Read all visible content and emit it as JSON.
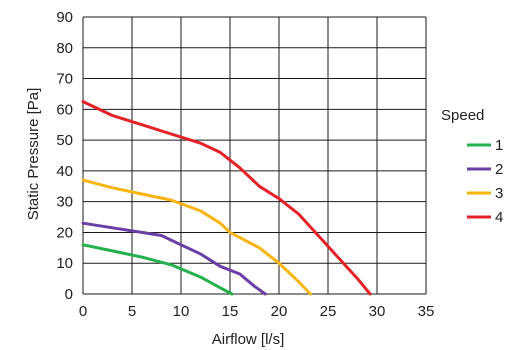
{
  "chart_data": {
    "type": "line",
    "title": "",
    "xlabel": "Airflow [l/s]",
    "ylabel": "Static Pressure [Pa]",
    "xlim": [
      0,
      35
    ],
    "ylim": [
      0,
      90
    ],
    "x_ticks": [
      "0",
      "5",
      "10",
      "15",
      "20",
      "25",
      "30",
      "35"
    ],
    "y_ticks": [
      "0",
      "10",
      "20",
      "30",
      "40",
      "50",
      "60",
      "70",
      "80",
      "90"
    ],
    "grid": true,
    "legend_title": "Speed",
    "legend_position": "right",
    "series": [
      {
        "name": "1",
        "color": "#22b14c",
        "points": [
          [
            0,
            16
          ],
          [
            3,
            14
          ],
          [
            6,
            12
          ],
          [
            9,
            9.5
          ],
          [
            12,
            5.5
          ],
          [
            14,
            2
          ],
          [
            15.2,
            0
          ]
        ]
      },
      {
        "name": "2",
        "color": "#6a3fa5",
        "points": [
          [
            0,
            23
          ],
          [
            3,
            21.5
          ],
          [
            6,
            20
          ],
          [
            8,
            19
          ],
          [
            10,
            16
          ],
          [
            12,
            13
          ],
          [
            14,
            9
          ],
          [
            16,
            6.5
          ],
          [
            17.5,
            2.5
          ],
          [
            18.6,
            0
          ]
        ]
      },
      {
        "name": "3",
        "color": "#f9b40e",
        "points": [
          [
            0,
            37
          ],
          [
            3,
            34.5
          ],
          [
            6,
            32.5
          ],
          [
            9,
            30.5
          ],
          [
            12,
            27
          ],
          [
            14,
            23
          ],
          [
            15,
            20
          ],
          [
            18,
            15
          ],
          [
            20,
            10
          ],
          [
            22,
            4
          ],
          [
            23.2,
            0
          ]
        ]
      },
      {
        "name": "4",
        "color": "#e52128",
        "points": [
          [
            0,
            62.5
          ],
          [
            3,
            58
          ],
          [
            6,
            55
          ],
          [
            9,
            52
          ],
          [
            12,
            49
          ],
          [
            14,
            46
          ],
          [
            16,
            41
          ],
          [
            18,
            35
          ],
          [
            20,
            31
          ],
          [
            22,
            26
          ],
          [
            24,
            19
          ],
          [
            26,
            12
          ],
          [
            28,
            5
          ],
          [
            29.3,
            0
          ]
        ]
      }
    ]
  }
}
